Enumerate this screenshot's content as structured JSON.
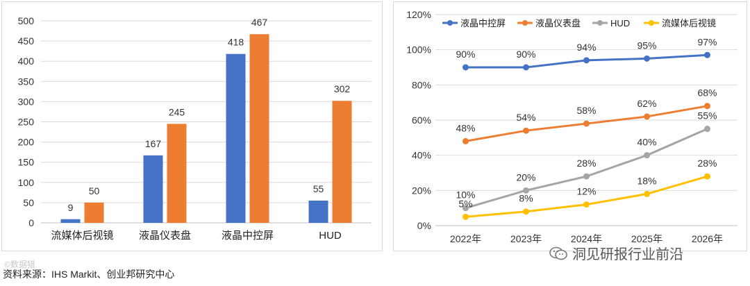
{
  "charts": [
    {
      "chart_data": {
        "type": "bar",
        "categories": [
          "流媒体后视镜",
          "液晶仪表盘",
          "液晶中控屏",
          "HUD"
        ],
        "series": [
          {
            "values": [
              9,
              167,
              418,
              55
            ],
            "color": "#4472C4"
          },
          {
            "values": [
              50,
              245,
              467,
              302
            ],
            "color": "#ED7D31"
          }
        ],
        "ylim": [
          0,
          500
        ],
        "yticks": [
          0,
          50,
          100,
          150,
          200,
          250,
          300,
          350,
          400,
          450,
          500
        ],
        "grid": true,
        "legend": "none"
      }
    },
    {
      "chart_data": {
        "type": "line",
        "x": [
          "2022年",
          "2023年",
          "2024年",
          "2025年",
          "2026年"
        ],
        "series": [
          {
            "name": "液晶中控屏",
            "values": [
              90,
              90,
              94,
              95,
              97
            ],
            "labels": [
              "90%",
              "90%",
              "94%",
              "95%",
              "97%"
            ],
            "color": "#4472C4"
          },
          {
            "name": "液晶仪表盘",
            "values": [
              48,
              54,
              58,
              62,
              68
            ],
            "labels": [
              "48%",
              "54%",
              "58%",
              "62%",
              "68%"
            ],
            "color": "#ED7D31"
          },
          {
            "name": "HUD",
            "values": [
              10,
              20,
              28,
              40,
              55
            ],
            "labels": [
              "10%",
              "20%",
              "28%",
              "40%",
              "55%"
            ],
            "color": "#A5A5A5"
          },
          {
            "name": "流媒体后视镜",
            "values": [
              5,
              8,
              12,
              18,
              28
            ],
            "labels": [
              "5%",
              "8%",
              "12%",
              "18%",
              "28%"
            ],
            "color": "#FFC000"
          }
        ],
        "ylim": [
          0,
          120
        ],
        "yticks": [
          "0%",
          "20%",
          "40%",
          "60%",
          "80%",
          "100%",
          "120%"
        ],
        "grid": true,
        "legend": "top"
      }
    }
  ],
  "source_note": "资料来源：IHS Markit、创业邦研究中心",
  "watermark_text": "洞见研报行业前沿",
  "corner_watermark": "©数据猎"
}
